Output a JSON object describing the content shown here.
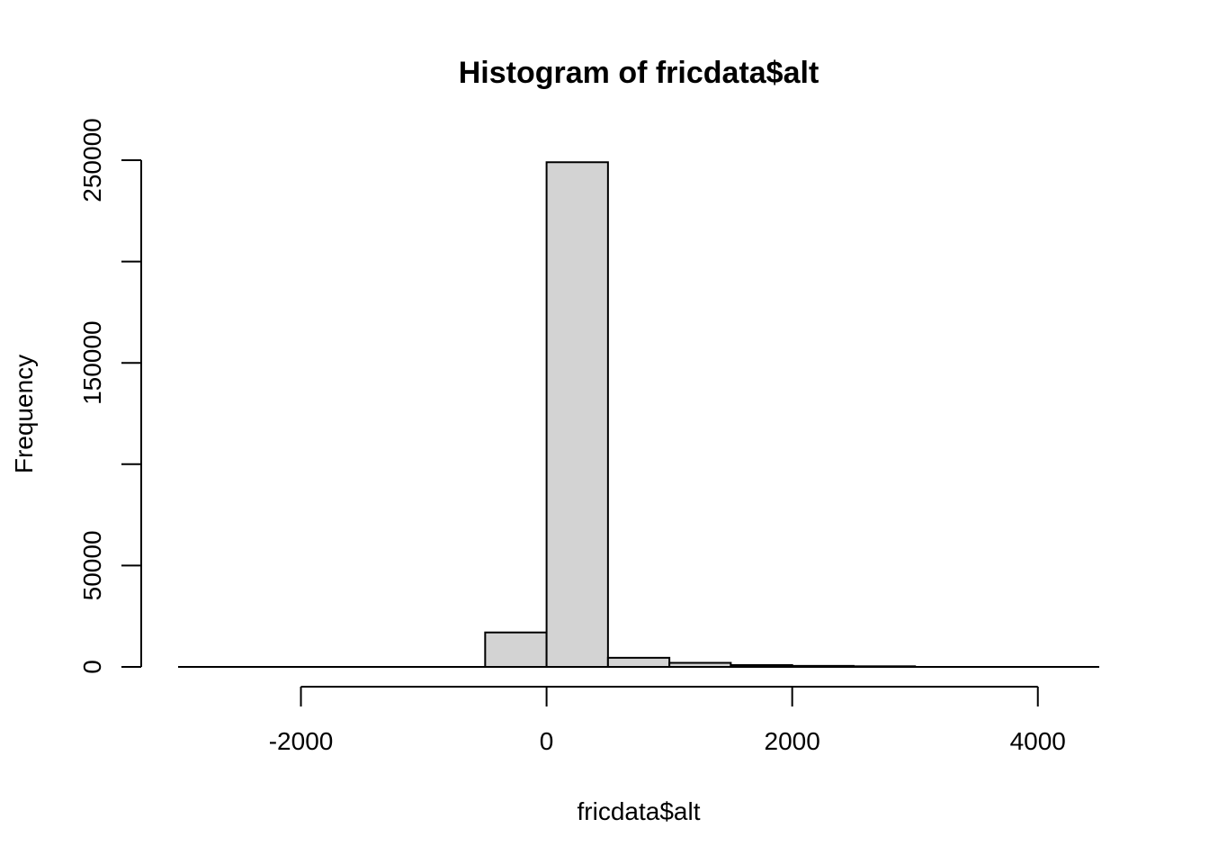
{
  "chart_data": {
    "type": "bar",
    "title": "Histogram of fricdata$alt",
    "xlabel": "fricdata$alt",
    "ylabel": "Frequency",
    "xlim": [
      -3000,
      4500
    ],
    "ylim": [
      0,
      250000
    ],
    "x_ticks": [
      -2000,
      0,
      2000,
      4000
    ],
    "x_tick_labels": [
      "-2000",
      "0",
      "2000",
      "4000"
    ],
    "y_ticks": [
      0,
      50000,
      100000,
      150000,
      200000,
      250000
    ],
    "y_tick_labels": [
      "0",
      "50000",
      "",
      "150000",
      "",
      "250000"
    ],
    "bins": [
      {
        "from": -3000,
        "to": -2500,
        "count": 0
      },
      {
        "from": -2500,
        "to": -2000,
        "count": 0
      },
      {
        "from": -2000,
        "to": -1500,
        "count": 0
      },
      {
        "from": -1500,
        "to": -1000,
        "count": 0
      },
      {
        "from": -1000,
        "to": -500,
        "count": 0
      },
      {
        "from": -500,
        "to": 0,
        "count": 17000
      },
      {
        "from": 0,
        "to": 500,
        "count": 249000
      },
      {
        "from": 500,
        "to": 1000,
        "count": 4500
      },
      {
        "from": 1000,
        "to": 1500,
        "count": 2000
      },
      {
        "from": 1500,
        "to": 2000,
        "count": 900
      },
      {
        "from": 2000,
        "to": 2500,
        "count": 500
      },
      {
        "from": 2500,
        "to": 3000,
        "count": 300
      },
      {
        "from": 3000,
        "to": 3500,
        "count": 0
      },
      {
        "from": 3500,
        "to": 4000,
        "count": 0
      },
      {
        "from": 4000,
        "to": 4500,
        "count": 0
      }
    ],
    "grid": false,
    "bar_color": "#d3d3d3",
    "edge_color": "#000000"
  }
}
